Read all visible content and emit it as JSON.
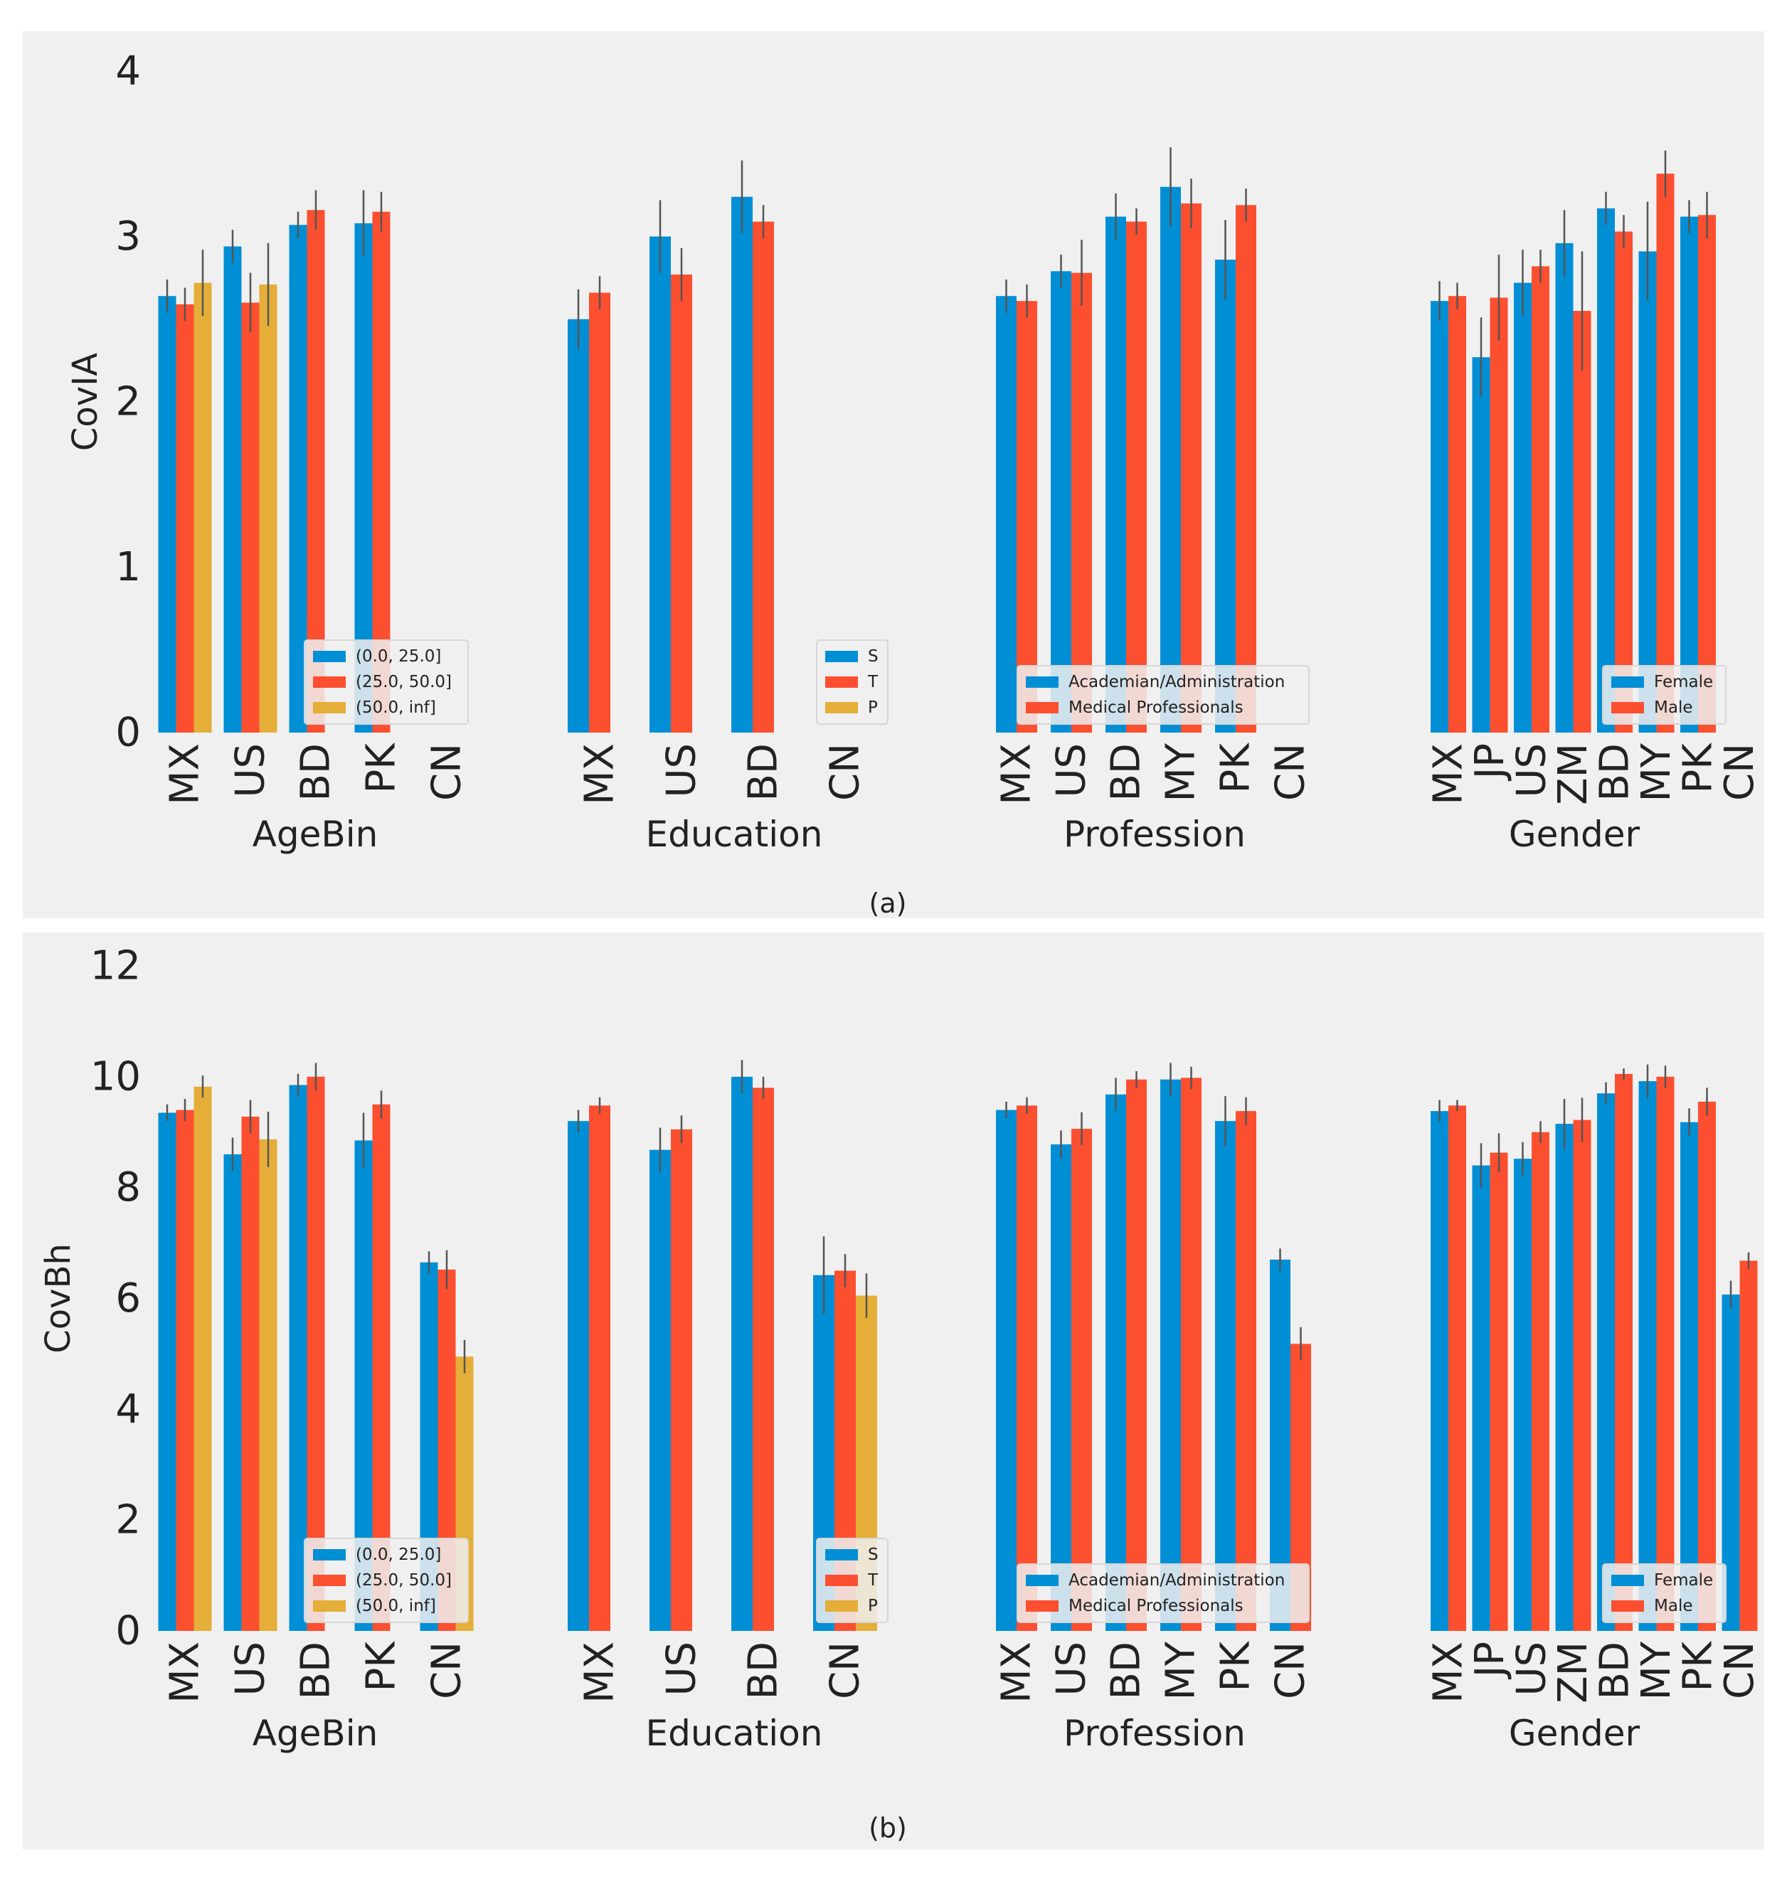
{
  "colors": {
    "page_background": "#ffffff",
    "panel_background": "#f0f0f0",
    "series_1": "#008fd5",
    "series_2": "#fc4f30",
    "series_3": "#e5ae38",
    "error_bar": "#555555",
    "legend_border": "#d6d6d6",
    "text": "#222222"
  },
  "chart_data": [
    {
      "caption": "(a)",
      "type": "bar",
      "ylabel": "CovIA",
      "ylim": [
        0,
        4
      ],
      "yticks": [
        0,
        1,
        2,
        3,
        4
      ],
      "grid": false,
      "panels": [
        {
          "xlabel": "AgeBin",
          "categories": [
            "MX",
            "US",
            "BD",
            "PK",
            "CN"
          ],
          "legend": {
            "location": "lower-right",
            "entries": [
              "(0.0, 25.0]",
              "(25.0, 50.0]",
              "(50.0, inf]"
            ]
          },
          "series": [
            {
              "name": "(0.0, 25.0]",
              "values": [
                2.64,
                2.94,
                3.07,
                3.08,
                null
              ],
              "errors": [
                0.1,
                0.1,
                0.08,
                0.2,
                null
              ]
            },
            {
              "name": "(25.0, 50.0]",
              "values": [
                2.59,
                2.6,
                3.16,
                3.15,
                null
              ],
              "errors": [
                0.1,
                0.18,
                0.12,
                0.12,
                null
              ]
            },
            {
              "name": "(50.0, inf]",
              "values": [
                2.72,
                2.71,
                null,
                null,
                null
              ],
              "errors": [
                0.2,
                0.25,
                null,
                null,
                null
              ]
            }
          ]
        },
        {
          "xlabel": "Education",
          "categories": [
            "MX",
            "US",
            "BD",
            "CN"
          ],
          "legend": {
            "location": "lower-right",
            "entries": [
              "S",
              "T",
              "P"
            ]
          },
          "series": [
            {
              "name": "S",
              "values": [
                2.5,
                3.0,
                3.24,
                null
              ],
              "errors": [
                0.18,
                0.22,
                0.22,
                null
              ]
            },
            {
              "name": "T",
              "values": [
                2.66,
                2.77,
                3.09,
                null
              ],
              "errors": [
                0.1,
                0.16,
                0.1,
                null
              ]
            },
            {
              "name": "P",
              "values": [
                null,
                null,
                null,
                null
              ],
              "errors": [
                null,
                null,
                null,
                null
              ]
            }
          ]
        },
        {
          "xlabel": "Profession",
          "categories": [
            "MX",
            "US",
            "BD",
            "MY",
            "PK",
            "CN"
          ],
          "legend": {
            "location": "lower-right",
            "entries": [
              "Academian/Administration",
              "Medical Professionals"
            ]
          },
          "series": [
            {
              "name": "Academian/Administration",
              "values": [
                2.64,
                2.79,
                3.12,
                3.3,
                2.86,
                null
              ],
              "errors": [
                0.1,
                0.1,
                0.14,
                0.24,
                0.24,
                null
              ]
            },
            {
              "name": "Medical Professionals",
              "values": [
                2.61,
                2.78,
                3.09,
                3.2,
                3.19,
                null
              ],
              "errors": [
                0.1,
                0.2,
                0.08,
                0.15,
                0.1,
                null
              ]
            }
          ]
        },
        {
          "xlabel": "Gender",
          "categories": [
            "MX",
            "JP",
            "US",
            "ZM",
            "BD",
            "MY",
            "PK",
            "CN"
          ],
          "legend": {
            "location": "lower-right",
            "entries": [
              "Female",
              "Male"
            ]
          },
          "series": [
            {
              "name": "Female",
              "values": [
                2.61,
                2.27,
                2.72,
                2.96,
                3.17,
                2.91,
                3.12,
                null
              ],
              "errors": [
                0.12,
                0.24,
                0.2,
                0.2,
                0.1,
                0.3,
                0.1,
                null
              ]
            },
            {
              "name": "Male",
              "values": [
                2.64,
                2.63,
                2.82,
                2.55,
                3.03,
                3.38,
                3.13,
                null
              ],
              "errors": [
                0.08,
                0.26,
                0.1,
                0.36,
                0.1,
                0.14,
                0.14,
                null
              ]
            }
          ]
        }
      ]
    },
    {
      "caption": "(b)",
      "type": "bar",
      "ylabel": "CovBh",
      "ylim": [
        0,
        12
      ],
      "yticks": [
        0,
        2,
        4,
        6,
        8,
        10,
        12
      ],
      "grid": false,
      "panels": [
        {
          "xlabel": "AgeBin",
          "categories": [
            "MX",
            "US",
            "BD",
            "PK",
            "CN"
          ],
          "legend": {
            "location": "lower-right",
            "entries": [
              "(0.0, 25.0]",
              "(25.0, 50.0]",
              "(50.0, inf]"
            ]
          },
          "series": [
            {
              "name": "(0.0, 25.0]",
              "values": [
                9.35,
                8.6,
                9.85,
                8.85,
                6.65
              ],
              "errors": [
                0.15,
                0.3,
                0.2,
                0.5,
                0.2
              ]
            },
            {
              "name": "(25.0, 50.0]",
              "values": [
                9.4,
                9.28,
                10.0,
                9.5,
                6.52
              ],
              "errors": [
                0.2,
                0.3,
                0.25,
                0.25,
                0.35
              ]
            },
            {
              "name": "(50.0, inf]",
              "values": [
                9.82,
                8.87,
                null,
                null,
                4.95
              ],
              "errors": [
                0.2,
                0.5,
                null,
                null,
                0.3
              ]
            }
          ]
        },
        {
          "xlabel": "Education",
          "categories": [
            "MX",
            "US",
            "BD",
            "CN"
          ],
          "legend": {
            "location": "lower-right",
            "entries": [
              "S",
              "T",
              "P"
            ]
          },
          "series": [
            {
              "name": "S",
              "values": [
                9.2,
                8.68,
                10.0,
                6.42
              ],
              "errors": [
                0.2,
                0.4,
                0.3,
                0.7
              ]
            },
            {
              "name": "T",
              "values": [
                9.48,
                9.05,
                9.8,
                6.5
              ],
              "errors": [
                0.15,
                0.25,
                0.2,
                0.3
              ]
            },
            {
              "name": "P",
              "values": [
                null,
                null,
                null,
                6.05
              ],
              "errors": [
                null,
                null,
                null,
                0.4
              ]
            }
          ]
        },
        {
          "xlabel": "Profession",
          "categories": [
            "MX",
            "US",
            "BD",
            "MY",
            "PK",
            "CN"
          ],
          "legend": {
            "location": "lower-right",
            "entries": [
              "Academian/Administration",
              "Medical Professionals"
            ]
          },
          "series": [
            {
              "name": "Academian/Administration",
              "values": [
                9.4,
                8.78,
                9.68,
                9.95,
                9.2,
                6.7
              ],
              "errors": [
                0.15,
                0.25,
                0.3,
                0.3,
                0.45,
                0.2
              ]
            },
            {
              "name": "Medical Professionals",
              "values": [
                9.48,
                9.06,
                9.95,
                9.98,
                9.38,
                5.18
              ],
              "errors": [
                0.15,
                0.3,
                0.15,
                0.2,
                0.25,
                0.3
              ]
            }
          ]
        },
        {
          "xlabel": "Gender",
          "categories": [
            "MX",
            "JP",
            "US",
            "ZM",
            "BD",
            "MY",
            "PK",
            "CN"
          ],
          "legend": {
            "location": "lower-right",
            "entries": [
              "Female",
              "Male"
            ]
          },
          "series": [
            {
              "name": "Female",
              "values": [
                9.38,
                8.4,
                8.52,
                9.15,
                9.7,
                9.92,
                9.18,
                6.07
              ],
              "errors": [
                0.2,
                0.4,
                0.3,
                0.45,
                0.2,
                0.3,
                0.25,
                0.25
              ]
            },
            {
              "name": "Male",
              "values": [
                9.48,
                8.63,
                9.0,
                9.22,
                10.05,
                10.0,
                9.55,
                6.68
              ],
              "errors": [
                0.1,
                0.35,
                0.2,
                0.4,
                0.1,
                0.2,
                0.25,
                0.15
              ]
            }
          ]
        }
      ]
    }
  ]
}
